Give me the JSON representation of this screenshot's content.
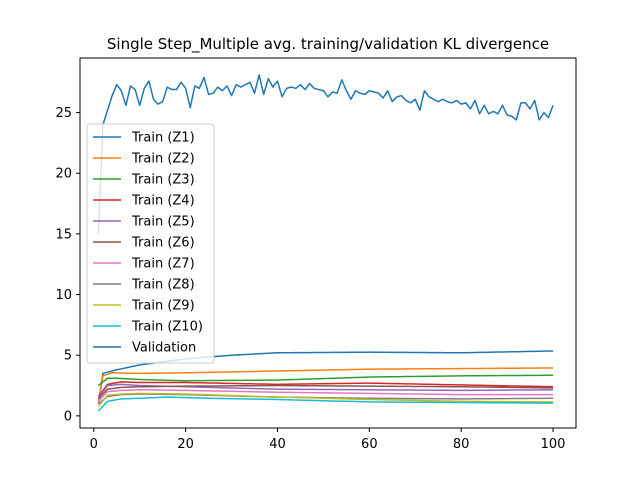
{
  "chart_data": {
    "type": "line",
    "title": "Single Step_Multiple avg. training/validation KL divergence",
    "xlabel": "",
    "ylabel": "",
    "xlim": [
      -3,
      105
    ],
    "ylim": [
      -1,
      29.5
    ],
    "xticks": [
      0,
      20,
      40,
      60,
      80,
      100
    ],
    "yticks": [
      0,
      5,
      10,
      15,
      20,
      25
    ],
    "grid": false,
    "legend_position": "center-left",
    "x": [
      1,
      2,
      3,
      4,
      5,
      6,
      7,
      8,
      9,
      10,
      11,
      12,
      13,
      14,
      15,
      16,
      17,
      18,
      19,
      20,
      21,
      22,
      23,
      24,
      25,
      26,
      27,
      28,
      29,
      30,
      31,
      32,
      33,
      34,
      35,
      36,
      37,
      38,
      39,
      40,
      41,
      42,
      43,
      44,
      45,
      46,
      47,
      48,
      49,
      50,
      51,
      52,
      53,
      54,
      55,
      56,
      57,
      58,
      59,
      60,
      61,
      62,
      63,
      64,
      65,
      66,
      67,
      68,
      69,
      70,
      71,
      72,
      73,
      74,
      75,
      76,
      77,
      78,
      79,
      80,
      81,
      82,
      83,
      84,
      85,
      86,
      87,
      88,
      89,
      90,
      91,
      92,
      93,
      94,
      95,
      96,
      97,
      98,
      99,
      100
    ],
    "series": [
      {
        "name": "Train (Z1)",
        "color": "#1f77b4",
        "anchors": [
          [
            1,
            1.0
          ],
          [
            2,
            3.5
          ],
          [
            5,
            3.8
          ],
          [
            10,
            4.2
          ],
          [
            20,
            4.7
          ],
          [
            30,
            5.0
          ],
          [
            40,
            5.2
          ],
          [
            60,
            5.25
          ],
          [
            80,
            5.2
          ],
          [
            100,
            5.35
          ]
        ]
      },
      {
        "name": "Train (Z2)",
        "color": "#ff7f0e",
        "anchors": [
          [
            1,
            1.0
          ],
          [
            2,
            3.3
          ],
          [
            4,
            3.55
          ],
          [
            10,
            3.5
          ],
          [
            20,
            3.55
          ],
          [
            40,
            3.7
          ],
          [
            60,
            3.85
          ],
          [
            80,
            3.9
          ],
          [
            100,
            3.95
          ]
        ]
      },
      {
        "name": "Train (Z3)",
        "color": "#2ca02c",
        "anchors": [
          [
            1,
            2.5
          ],
          [
            3,
            3.1
          ],
          [
            5,
            3.1
          ],
          [
            10,
            3.0
          ],
          [
            20,
            2.9
          ],
          [
            40,
            2.95
          ],
          [
            60,
            3.2
          ],
          [
            80,
            3.3
          ],
          [
            100,
            3.35
          ]
        ]
      },
      {
        "name": "Train (Z4)",
        "color": "#d62728",
        "anchors": [
          [
            1,
            1.6
          ],
          [
            3,
            2.6
          ],
          [
            6,
            2.8
          ],
          [
            10,
            2.75
          ],
          [
            20,
            2.75
          ],
          [
            40,
            2.6
          ],
          [
            60,
            2.7
          ],
          [
            80,
            2.55
          ],
          [
            100,
            2.4
          ]
        ]
      },
      {
        "name": "Train (Z5)",
        "color": "#9467bd",
        "anchors": [
          [
            1,
            1.5
          ],
          [
            3,
            2.5
          ],
          [
            6,
            2.6
          ],
          [
            10,
            2.5
          ],
          [
            20,
            2.4
          ],
          [
            40,
            2.2
          ],
          [
            60,
            2.15
          ],
          [
            80,
            2.1
          ],
          [
            100,
            2.15
          ]
        ]
      },
      {
        "name": "Train (Z6)",
        "color": "#8c564b",
        "anchors": [
          [
            1,
            1.4
          ],
          [
            3,
            2.2
          ],
          [
            6,
            2.35
          ],
          [
            10,
            2.4
          ],
          [
            20,
            2.45
          ],
          [
            40,
            2.5
          ],
          [
            60,
            2.45
          ],
          [
            80,
            2.4
          ],
          [
            100,
            2.3
          ]
        ]
      },
      {
        "name": "Train (Z7)",
        "color": "#e377c2",
        "anchors": [
          [
            1,
            1.2
          ],
          [
            3,
            2.0
          ],
          [
            6,
            2.1
          ],
          [
            10,
            2.15
          ],
          [
            20,
            2.1
          ],
          [
            40,
            1.95
          ],
          [
            60,
            1.85
          ],
          [
            80,
            1.75
          ],
          [
            100,
            1.75
          ]
        ]
      },
      {
        "name": "Train (Z8)",
        "color": "#7f7f7f",
        "anchors": [
          [
            1,
            1.0
          ],
          [
            3,
            1.6
          ],
          [
            6,
            1.75
          ],
          [
            10,
            1.8
          ],
          [
            20,
            1.75
          ],
          [
            40,
            1.55
          ],
          [
            60,
            1.45
          ],
          [
            80,
            1.4
          ],
          [
            100,
            1.45
          ]
        ]
      },
      {
        "name": "Train (Z9)",
        "color": "#bcbd22",
        "anchors": [
          [
            1,
            0.8
          ],
          [
            3,
            1.7
          ],
          [
            6,
            1.8
          ],
          [
            10,
            1.85
          ],
          [
            20,
            1.8
          ],
          [
            40,
            1.55
          ],
          [
            60,
            1.35
          ],
          [
            80,
            1.2
          ],
          [
            100,
            1.15
          ]
        ]
      },
      {
        "name": "Train (Z10)",
        "color": "#17becf",
        "anchors": [
          [
            1,
            0.4
          ],
          [
            3,
            1.2
          ],
          [
            6,
            1.4
          ],
          [
            10,
            1.45
          ],
          [
            16,
            1.55
          ],
          [
            25,
            1.45
          ],
          [
            40,
            1.35
          ],
          [
            60,
            1.15
          ],
          [
            80,
            1.1
          ],
          [
            100,
            1.05
          ]
        ]
      },
      {
        "name": "Validation",
        "color": "#1f77b4",
        "values": [
          15.0,
          24.0,
          25.2,
          26.4,
          27.3,
          26.8,
          25.6,
          27.2,
          26.9,
          25.6,
          27.0,
          27.6,
          26.1,
          25.7,
          25.9,
          27.1,
          26.9,
          26.9,
          27.5,
          27.0,
          25.4,
          27.2,
          27.0,
          27.9,
          26.5,
          26.6,
          27.1,
          26.8,
          27.2,
          26.4,
          27.3,
          27.1,
          27.3,
          27.5,
          26.6,
          28.1,
          26.5,
          27.8,
          27.1,
          27.6,
          26.3,
          27.0,
          27.1,
          27.0,
          27.3,
          26.9,
          27.4,
          27.0,
          26.9,
          26.8,
          26.3,
          26.7,
          26.6,
          27.7,
          26.8,
          26.1,
          26.8,
          26.6,
          26.5,
          26.8,
          26.7,
          26.6,
          26.2,
          26.8,
          25.9,
          26.3,
          26.4,
          26.0,
          25.8,
          26.1,
          25.2,
          26.8,
          26.3,
          26.1,
          25.9,
          26.1,
          25.9,
          25.8,
          26.0,
          25.7,
          25.8,
          25.3,
          26.0,
          24.9,
          25.6,
          24.9,
          25.1,
          24.9,
          25.6,
          24.8,
          24.7,
          24.4,
          25.8,
          25.8,
          25.3,
          26.0,
          24.4,
          25.0,
          24.6,
          25.6
        ]
      }
    ]
  }
}
